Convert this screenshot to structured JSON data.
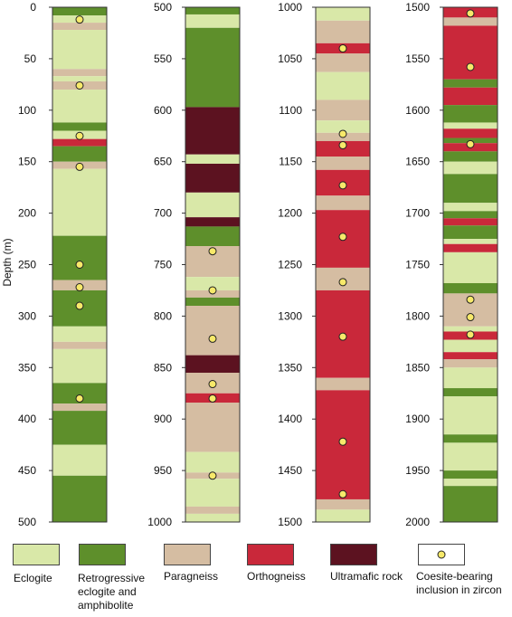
{
  "ylabel": "Depth (m)",
  "colors": {
    "E": "#d9e8a8",
    "R": "#5e8f2b",
    "P": "#d5bda2",
    "O": "#c9283a",
    "U": "#5c1220",
    "dot_fill": "#f7e96a"
  },
  "legend": [
    {
      "key": "E",
      "label": "Eclogite"
    },
    {
      "key": "R",
      "label": "Retrogressive\neclogite and\namphibolite"
    },
    {
      "key": "P",
      "label": "Paragneiss"
    },
    {
      "key": "O",
      "label": "Orthogneiss"
    },
    {
      "key": "U",
      "label": "Ultramafic rock"
    },
    {
      "key": "C",
      "label": "Coesite-bearing\ninclusion in zircon"
    }
  ],
  "columns": [
    {
      "ticks": [
        "0",
        "50",
        "100",
        "150",
        "200",
        "250",
        "300",
        "350",
        "400",
        "450",
        "500"
      ],
      "range": [
        0,
        500
      ],
      "layers": [
        {
          "from": 0,
          "to": 8,
          "type": "R"
        },
        {
          "from": 8,
          "to": 15,
          "type": "E"
        },
        {
          "from": 15,
          "to": 22,
          "type": "P"
        },
        {
          "from": 22,
          "to": 60,
          "type": "E"
        },
        {
          "from": 60,
          "to": 67,
          "type": "P"
        },
        {
          "from": 67,
          "to": 72,
          "type": "E"
        },
        {
          "from": 72,
          "to": 80,
          "type": "P"
        },
        {
          "from": 80,
          "to": 112,
          "type": "E"
        },
        {
          "from": 112,
          "to": 120,
          "type": "R"
        },
        {
          "from": 120,
          "to": 128,
          "type": "E"
        },
        {
          "from": 128,
          "to": 135,
          "type": "O"
        },
        {
          "from": 135,
          "to": 150,
          "type": "R"
        },
        {
          "from": 150,
          "to": 157,
          "type": "P"
        },
        {
          "from": 157,
          "to": 222,
          "type": "E"
        },
        {
          "from": 222,
          "to": 265,
          "type": "R"
        },
        {
          "from": 265,
          "to": 275,
          "type": "P"
        },
        {
          "from": 275,
          "to": 310,
          "type": "R"
        },
        {
          "from": 310,
          "to": 325,
          "type": "E"
        },
        {
          "from": 325,
          "to": 332,
          "type": "P"
        },
        {
          "from": 332,
          "to": 365,
          "type": "E"
        },
        {
          "from": 365,
          "to": 385,
          "type": "R"
        },
        {
          "from": 385,
          "to": 392,
          "type": "P"
        },
        {
          "from": 392,
          "to": 425,
          "type": "R"
        },
        {
          "from": 425,
          "to": 455,
          "type": "E"
        },
        {
          "from": 455,
          "to": 500,
          "type": "R"
        }
      ],
      "dots": [
        12,
        76,
        125,
        155,
        250,
        272,
        290,
        380
      ]
    },
    {
      "ticks": [
        "500",
        "550",
        "600",
        "650",
        "700",
        "750",
        "800",
        "850",
        "900",
        "950",
        "1000"
      ],
      "range": [
        500,
        1000
      ],
      "layers": [
        {
          "from": 500,
          "to": 507,
          "type": "R"
        },
        {
          "from": 507,
          "to": 520,
          "type": "E"
        },
        {
          "from": 520,
          "to": 597,
          "type": "R"
        },
        {
          "from": 597,
          "to": 643,
          "type": "U"
        },
        {
          "from": 643,
          "to": 652,
          "type": "E"
        },
        {
          "from": 652,
          "to": 680,
          "type": "U"
        },
        {
          "from": 680,
          "to": 704,
          "type": "E"
        },
        {
          "from": 704,
          "to": 713,
          "type": "U"
        },
        {
          "from": 713,
          "to": 732,
          "type": "R"
        },
        {
          "from": 732,
          "to": 762,
          "type": "P"
        },
        {
          "from": 762,
          "to": 775,
          "type": "E"
        },
        {
          "from": 775,
          "to": 782,
          "type": "P"
        },
        {
          "from": 782,
          "to": 790,
          "type": "R"
        },
        {
          "from": 790,
          "to": 838,
          "type": "P"
        },
        {
          "from": 838,
          "to": 855,
          "type": "U"
        },
        {
          "from": 855,
          "to": 875,
          "type": "P"
        },
        {
          "from": 875,
          "to": 884,
          "type": "O"
        },
        {
          "from": 884,
          "to": 932,
          "type": "P"
        },
        {
          "from": 932,
          "to": 952,
          "type": "E"
        },
        {
          "from": 952,
          "to": 958,
          "type": "P"
        },
        {
          "from": 958,
          "to": 985,
          "type": "E"
        },
        {
          "from": 985,
          "to": 992,
          "type": "P"
        },
        {
          "from": 992,
          "to": 1000,
          "type": "E"
        }
      ],
      "dots": [
        737,
        775,
        822,
        866,
        880,
        955
      ]
    },
    {
      "ticks": [
        "1000",
        "1050",
        "1100",
        "1150",
        "1200",
        "1250",
        "1300",
        "1350",
        "1400",
        "1450",
        "1500"
      ],
      "range": [
        1000,
        1500
      ],
      "layers": [
        {
          "from": 1000,
          "to": 1013,
          "type": "E"
        },
        {
          "from": 1013,
          "to": 1035,
          "type": "P"
        },
        {
          "from": 1035,
          "to": 1045,
          "type": "O"
        },
        {
          "from": 1045,
          "to": 1063,
          "type": "P"
        },
        {
          "from": 1063,
          "to": 1090,
          "type": "E"
        },
        {
          "from": 1090,
          "to": 1110,
          "type": "P"
        },
        {
          "from": 1110,
          "to": 1122,
          "type": "E"
        },
        {
          "from": 1122,
          "to": 1130,
          "type": "P"
        },
        {
          "from": 1130,
          "to": 1145,
          "type": "O"
        },
        {
          "from": 1145,
          "to": 1158,
          "type": "P"
        },
        {
          "from": 1158,
          "to": 1183,
          "type": "O"
        },
        {
          "from": 1183,
          "to": 1197,
          "type": "P"
        },
        {
          "from": 1197,
          "to": 1253,
          "type": "O"
        },
        {
          "from": 1253,
          "to": 1275,
          "type": "P"
        },
        {
          "from": 1275,
          "to": 1360,
          "type": "O"
        },
        {
          "from": 1360,
          "to": 1372,
          "type": "P"
        },
        {
          "from": 1372,
          "to": 1478,
          "type": "O"
        },
        {
          "from": 1478,
          "to": 1488,
          "type": "P"
        },
        {
          "from": 1488,
          "to": 1500,
          "type": "E"
        }
      ],
      "dots": [
        1040,
        1123,
        1134,
        1173,
        1223,
        1267,
        1320,
        1422,
        1473
      ]
    },
    {
      "ticks": [
        "1500",
        "1550",
        "1600",
        "1650",
        "1700",
        "1750",
        "1800",
        "1850",
        "1900",
        "1950",
        "2000"
      ],
      "range": [
        1500,
        2000
      ],
      "layers": [
        {
          "from": 1500,
          "to": 1510,
          "type": "O"
        },
        {
          "from": 1510,
          "to": 1518,
          "type": "P"
        },
        {
          "from": 1518,
          "to": 1570,
          "type": "O"
        },
        {
          "from": 1570,
          "to": 1578,
          "type": "R"
        },
        {
          "from": 1578,
          "to": 1595,
          "type": "O"
        },
        {
          "from": 1595,
          "to": 1612,
          "type": "R"
        },
        {
          "from": 1612,
          "to": 1618,
          "type": "E"
        },
        {
          "from": 1618,
          "to": 1627,
          "type": "O"
        },
        {
          "from": 1627,
          "to": 1632,
          "type": "R"
        },
        {
          "from": 1632,
          "to": 1640,
          "type": "O"
        },
        {
          "from": 1640,
          "to": 1650,
          "type": "R"
        },
        {
          "from": 1650,
          "to": 1662,
          "type": "E"
        },
        {
          "from": 1662,
          "to": 1690,
          "type": "R"
        },
        {
          "from": 1690,
          "to": 1698,
          "type": "E"
        },
        {
          "from": 1698,
          "to": 1705,
          "type": "R"
        },
        {
          "from": 1705,
          "to": 1712,
          "type": "O"
        },
        {
          "from": 1712,
          "to": 1725,
          "type": "R"
        },
        {
          "from": 1725,
          "to": 1730,
          "type": "E"
        },
        {
          "from": 1730,
          "to": 1738,
          "type": "O"
        },
        {
          "from": 1738,
          "to": 1768,
          "type": "E"
        },
        {
          "from": 1768,
          "to": 1778,
          "type": "R"
        },
        {
          "from": 1778,
          "to": 1810,
          "type": "P"
        },
        {
          "from": 1810,
          "to": 1815,
          "type": "E"
        },
        {
          "from": 1815,
          "to": 1823,
          "type": "O"
        },
        {
          "from": 1823,
          "to": 1835,
          "type": "E"
        },
        {
          "from": 1835,
          "to": 1842,
          "type": "O"
        },
        {
          "from": 1842,
          "to": 1850,
          "type": "P"
        },
        {
          "from": 1850,
          "to": 1870,
          "type": "E"
        },
        {
          "from": 1870,
          "to": 1878,
          "type": "R"
        },
        {
          "from": 1878,
          "to": 1915,
          "type": "E"
        },
        {
          "from": 1915,
          "to": 1923,
          "type": "R"
        },
        {
          "from": 1923,
          "to": 1950,
          "type": "E"
        },
        {
          "from": 1950,
          "to": 1958,
          "type": "R"
        },
        {
          "from": 1958,
          "to": 1965,
          "type": "E"
        },
        {
          "from": 1965,
          "to": 2000,
          "type": "R"
        }
      ],
      "dots": [
        1506,
        1558,
        1633,
        1784,
        1801,
        1818
      ]
    }
  ]
}
